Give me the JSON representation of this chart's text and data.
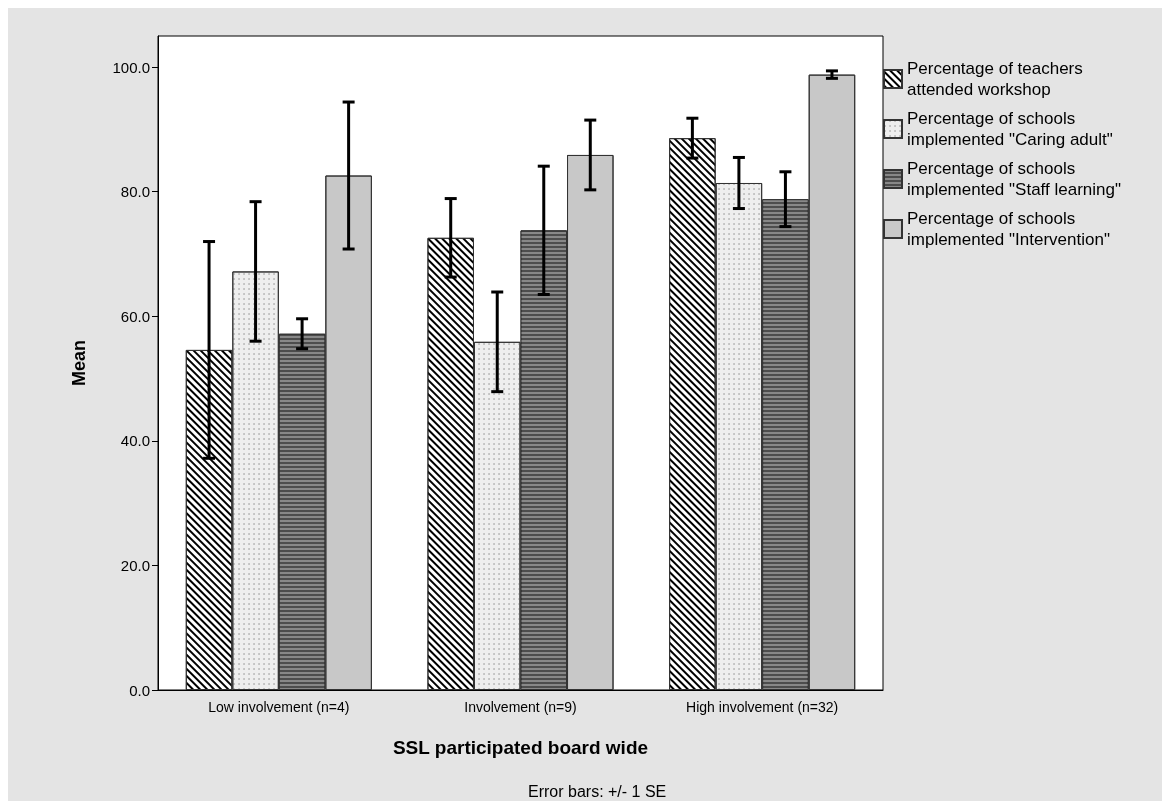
{
  "chart_data": {
    "type": "bar",
    "xlabel": "SSL participated board wide",
    "ylabel": "Mean",
    "categories": [
      "Low involvement (n=4)",
      "Involvement (n=9)",
      "High involvement (n=32)"
    ],
    "series": [
      {
        "name": "Percentage of teachers attended workshop",
        "color": "#ffffff",
        "values": [
          54.6,
          72.6,
          88.6
        ],
        "errors": [
          17.4,
          6.3,
          3.2
        ]
      },
      {
        "name": "Percentage of schools implemented \"Caring adult\"",
        "color": "#eeeeee",
        "values": [
          67.2,
          55.9,
          81.4
        ],
        "errors": [
          11.2,
          8.0,
          4.1
        ]
      },
      {
        "name": "Percentage of schools implemented \"Staff learning\"",
        "color": "#4d4d4d",
        "values": [
          57.2,
          73.8,
          78.8
        ],
        "errors": [
          2.4,
          10.3,
          4.4
        ]
      },
      {
        "name": "Percentage of schools implemented \"Intervention\"",
        "color": "#c8c8c8",
        "values": [
          82.6,
          85.9,
          98.8
        ],
        "errors": [
          11.8,
          5.6,
          0.6
        ]
      }
    ],
    "ylim": [
      0,
      105
    ],
    "yticks": [
      {
        "value": 0,
        "label": "0.0"
      },
      {
        "value": 20,
        "label": "20.0"
      },
      {
        "value": 40,
        "label": "40.0"
      },
      {
        "value": 60,
        "label": "60.0"
      },
      {
        "value": 80,
        "label": "80.0"
      },
      {
        "value": 100,
        "label": "100.0"
      }
    ],
    "grid": false,
    "legend": "right",
    "annotations": [
      "Error bars: +/- 1 SE"
    ]
  }
}
